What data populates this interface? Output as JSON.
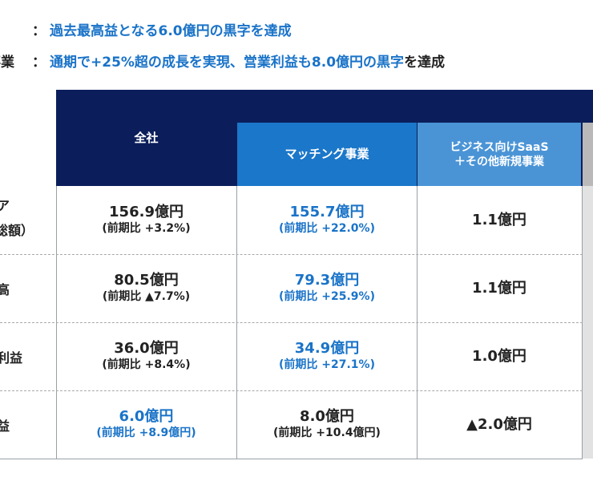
{
  "highlights": {
    "line1": {
      "label_fragment": "",
      "colon": "：",
      "text_blue": "過去最高益となる6.0億円の黒字を達成"
    },
    "line2": {
      "label_fragment": "事業",
      "colon": "：",
      "text_blue": "通期で+25%超の成長を実現、営業利益も8.0億円の黒字",
      "text_dark": "を達成"
    }
  },
  "table": {
    "columns": [
      "全社",
      "マッチング事業",
      "ビジネス向けSaaS\n＋その他新規事業"
    ],
    "column_lines": [
      "ビジネス向けSaaS",
      "＋その他新規事業"
    ],
    "rows": [
      {
        "label_top": "ア",
        "label_bottom": "総額）",
        "cells": [
          {
            "main": "156.9億円",
            "sub": "(前期比 +3.2%)"
          },
          {
            "main": "155.7億円",
            "sub": "(前期比 +22.0%)"
          },
          {
            "main": "1.1億円",
            "sub": ""
          }
        ]
      },
      {
        "label_top": "高",
        "label_bottom": "",
        "cells": [
          {
            "main": "80.5億円",
            "sub": "(前期比 ▲7.7%)"
          },
          {
            "main": "79.3億円",
            "sub": "(前期比 +25.9%)"
          },
          {
            "main": "1.1億円",
            "sub": ""
          }
        ]
      },
      {
        "label_top": "利益",
        "label_bottom": "",
        "cells": [
          {
            "main": "36.0億円",
            "sub": "(前期比 +8.4%)"
          },
          {
            "main": "34.9億円",
            "sub": "(前期比 +27.1%)"
          },
          {
            "main": "1.0億円",
            "sub": ""
          }
        ]
      },
      {
        "label_top": "益",
        "label_bottom": "",
        "cells": [
          {
            "main": "6.0億円",
            "sub": "(前期比 +8.9億円)"
          },
          {
            "main": "8.0億円",
            "sub": "(前期比 +10.4億円)"
          },
          {
            "main": "▲2.0億円",
            "sub": ""
          }
        ]
      }
    ]
  },
  "colors": {
    "navy": "#0b1e5b",
    "blue": "#1b77c9",
    "light_blue": "#4a94d6",
    "highlight_text": "#1a73c8"
  }
}
